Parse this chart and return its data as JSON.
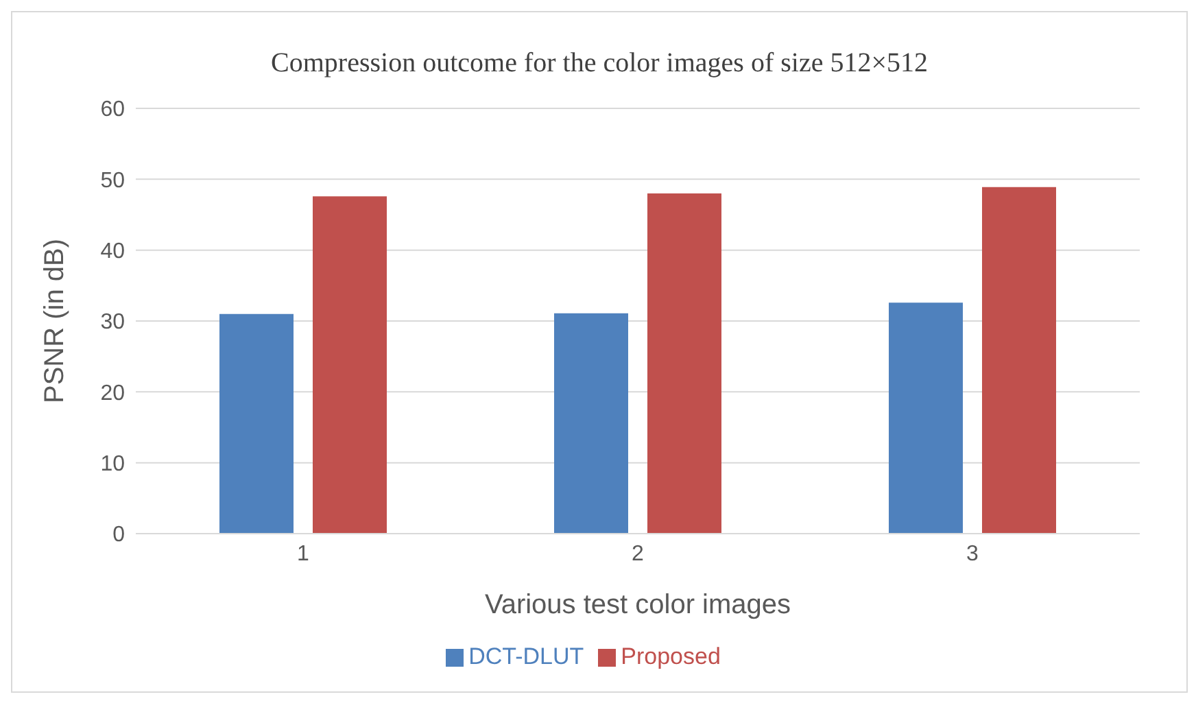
{
  "chart_data": {
    "type": "bar",
    "title": "Compression outcome for the color images of size 512×512",
    "xlabel": "Various test color images",
    "ylabel": "PSNR (in dB)",
    "categories": [
      "1",
      "2",
      "3"
    ],
    "series": [
      {
        "name": "DCT-DLUT",
        "color": "#4f81bd",
        "values": [
          31.0,
          31.1,
          32.6
        ]
      },
      {
        "name": "Proposed",
        "color": "#c0504d",
        "values": [
          47.6,
          48.0,
          48.9
        ]
      }
    ],
    "ylim": [
      0,
      60
    ],
    "yticks": [
      0,
      10,
      20,
      30,
      40,
      50,
      60
    ],
    "grid": "y",
    "legend": "bottom"
  }
}
